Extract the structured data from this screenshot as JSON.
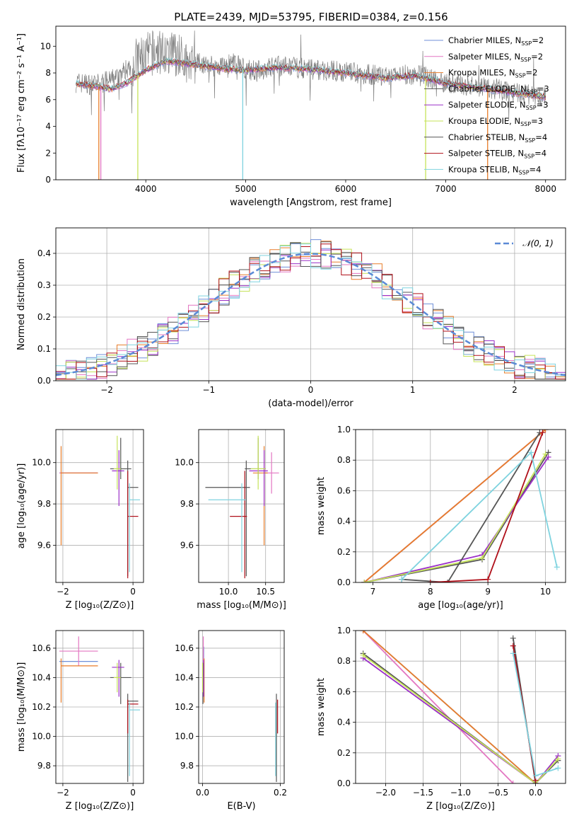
{
  "title": "PLATE=2439, MJD=53795, FIBERID=0384, z=0.156",
  "colors": [
    "#6f8fd8",
    "#e377c2",
    "#e87d2a",
    "#555555",
    "#9b30c8",
    "#c6e35a",
    "#555555",
    "#b0101a",
    "#7fd3df"
  ],
  "chart_data": [
    {
      "id": "spectrum",
      "type": "line",
      "xlabel": "wavelength [Angstrom, rest frame]",
      "ylabel": "Flux [fλ10⁻¹⁷ erg cm⁻² s⁻¹ A⁻¹]",
      "xlim": [
        3100,
        8200
      ],
      "ylim": [
        0,
        11.5
      ],
      "xticks": [
        4000,
        5000,
        6000,
        7000,
        8000
      ],
      "yticks": [
        0,
        2,
        4,
        6,
        8,
        10
      ],
      "grid": false,
      "legend_placement": "upper right",
      "data_continuum": [
        [
          3300,
          7.3
        ],
        [
          3500,
          7.1
        ],
        [
          3700,
          7.6
        ],
        [
          3900,
          8.9
        ],
        [
          4100,
          9.6
        ],
        [
          4300,
          9.3
        ],
        [
          4500,
          8.8
        ],
        [
          4700,
          8.5
        ],
        [
          4900,
          8.7
        ],
        [
          5100,
          8.1
        ],
        [
          5300,
          8.5
        ],
        [
          5500,
          8.4
        ],
        [
          5800,
          8.2
        ],
        [
          6100,
          8.0
        ],
        [
          6400,
          7.7
        ],
        [
          6700,
          7.9
        ],
        [
          7000,
          7.3
        ],
        [
          7300,
          7.0
        ],
        [
          7600,
          6.7
        ],
        [
          7900,
          6.3
        ],
        [
          8000,
          6.2
        ]
      ],
      "model_continuum": [
        [
          3300,
          7.2
        ],
        [
          3500,
          7.0
        ],
        [
          3650,
          6.8
        ],
        [
          3800,
          7.2
        ],
        [
          4000,
          8.2
        ],
        [
          4200,
          8.9
        ],
        [
          4500,
          8.6
        ],
        [
          4800,
          8.3
        ],
        [
          5000,
          8.2
        ],
        [
          5300,
          8.4
        ],
        [
          5600,
          8.3
        ],
        [
          6000,
          8.0
        ],
        [
          6400,
          7.6
        ],
        [
          6700,
          7.8
        ],
        [
          7000,
          7.2
        ],
        [
          7300,
          6.9
        ],
        [
          7600,
          6.6
        ],
        [
          8000,
          6.2
        ]
      ],
      "model_dropouts": [
        [
          3530,
          "#e87d2a"
        ],
        [
          3550,
          "#e377c2"
        ],
        [
          3920,
          "#c6e35a"
        ],
        [
          4970,
          "#7fd3df"
        ],
        [
          6800,
          "#c6e35a"
        ],
        [
          7420,
          "#e87d2a"
        ]
      ],
      "legend": [
        {
          "text": "Chabrier MILES, N",
          "sub": "SSP",
          "suffix": "=2",
          "color": "#6f8fd8"
        },
        {
          "text": "Salpeter MILES, N",
          "sub": "SSP",
          "suffix": "=2",
          "color": "#e377c2"
        },
        {
          "text": "Kroupa MILES, N",
          "sub": "SSP",
          "suffix": "=2",
          "color": "#e87d2a"
        },
        {
          "text": "Chabrier ELODIE, N",
          "sub": "SSP",
          "suffix": "=3",
          "color": "#555555"
        },
        {
          "text": "Salpeter ELODIE, N",
          "sub": "SSP",
          "suffix": "=3",
          "color": "#9b30c8"
        },
        {
          "text": "Kroupa ELODIE, N",
          "sub": "SSP",
          "suffix": "=3",
          "color": "#c6e35a"
        },
        {
          "text": "Chabrier STELIB, N",
          "sub": "SSP",
          "suffix": "=4",
          "color": "#555555"
        },
        {
          "text": "Salpeter STELIB, N",
          "sub": "SSP",
          "suffix": "=4",
          "color": "#b0101a"
        },
        {
          "text": "Kroupa STELIB, N",
          "sub": "SSP",
          "suffix": "=4",
          "color": "#7fd3df"
        }
      ]
    },
    {
      "id": "residual-histogram",
      "type": "line",
      "xlabel": "(data-model)/error",
      "ylabel": "Normed distribution",
      "xlim": [
        -2.5,
        2.5
      ],
      "ylim": [
        0,
        0.48
      ],
      "xticks": [
        -2,
        -1,
        0,
        1,
        2
      ],
      "xtick_labels": [
        "−2",
        "−1",
        "0",
        "1",
        "2"
      ],
      "yticks": [
        0.0,
        0.1,
        0.2,
        0.3,
        0.4
      ],
      "ytick_labels": [
        "0.0",
        "0.1",
        "0.2",
        "0.3",
        "0.4"
      ],
      "grid": true,
      "legend": "𝒩(0, 1)",
      "legend_placement": "upper right",
      "bins": 50,
      "reference_curve": "normal(0,1)"
    },
    {
      "id": "age-vs-Z",
      "type": "scatter",
      "xlabel": "Z [log₁₀(Z/Z⊙)]",
      "ylabel": "age  [log₁₀(age/yr)]",
      "xlim": [
        -2.2,
        0.3
      ],
      "ylim": [
        9.42,
        10.16
      ],
      "xticks": [
        -2,
        0
      ],
      "xtick_labels": [
        "−2",
        "0"
      ],
      "yticks": [
        9.6,
        9.8,
        10.0
      ],
      "ytick_labels": [
        "9.6",
        "9.8",
        "10.0"
      ],
      "grid": true,
      "points": [
        {
          "x": -1.55,
          "xerr": [
            0.55,
            0.55
          ],
          "y": 9.95,
          "yerr": [
            0,
            0
          ],
          "color": "#6f8fd8"
        },
        {
          "x": -1.55,
          "xerr": [
            0.55,
            0.55
          ],
          "y": 9.95,
          "yerr": [
            0,
            0
          ],
          "color": "#e377c2"
        },
        {
          "x": -2.05,
          "xerr": [
            0,
            1.05
          ],
          "y": 9.95,
          "yerr": [
            0.35,
            0.13
          ],
          "color": "#e87d2a"
        },
        {
          "x": -0.35,
          "xerr": [
            0.3,
            0.3
          ],
          "y": 9.97,
          "yerr": [
            0.05,
            0.15
          ],
          "color": "#555555"
        },
        {
          "x": -0.4,
          "xerr": [
            0.2,
            0.15
          ],
          "y": 9.96,
          "yerr": [
            0.17,
            0.1
          ],
          "color": "#9b30c8"
        },
        {
          "x": -0.45,
          "xerr": [
            0.1,
            0.1
          ],
          "y": 9.97,
          "yerr": [
            0.1,
            0.16
          ],
          "color": "#c6e35a"
        },
        {
          "x": -0.15,
          "xerr": [
            0,
            0.3
          ],
          "y": 9.88,
          "yerr": [
            0.43,
            0.13
          ],
          "color": "#555555"
        },
        {
          "x": -0.15,
          "xerr": [
            0,
            0.3
          ],
          "y": 9.74,
          "yerr": [
            0.3,
            0.22
          ],
          "color": "#b0101a"
        },
        {
          "x": -0.1,
          "xerr": [
            0,
            0.3
          ],
          "y": 9.82,
          "yerr": [
            0.35,
            0.08
          ],
          "color": "#7fd3df"
        }
      ]
    },
    {
      "id": "age-vs-mass",
      "type": "scatter",
      "xlabel": "mass [log₁₀(M/M⊙)]",
      "xlim": [
        9.6,
        10.75
      ],
      "ylim": [
        9.42,
        10.16
      ],
      "xticks": [
        10.0,
        10.5
      ],
      "xtick_labels": [
        "10.0",
        "10.5"
      ],
      "yticks": [
        9.6,
        9.8,
        10.0
      ],
      "ytick_labels": [
        "9.6",
        "9.8",
        "10.0"
      ],
      "grid": true,
      "points": [
        {
          "x": 10.5,
          "xerr": [
            0,
            0
          ],
          "y": 9.95,
          "yerr": [
            0,
            0
          ],
          "color": "#6f8fd8"
        },
        {
          "x": 10.58,
          "xerr": [
            0.1,
            0.1
          ],
          "y": 9.95,
          "yerr": [
            0.1,
            0.1
          ],
          "color": "#e377c2"
        },
        {
          "x": 10.48,
          "xerr": [
            0.15,
            0.05
          ],
          "y": 9.95,
          "yerr": [
            0.35,
            0.13
          ],
          "color": "#e87d2a"
        },
        {
          "x": 10.4,
          "xerr": [
            0.18,
            0.1
          ],
          "y": 9.97,
          "yerr": [
            0.05,
            0.15
          ],
          "color": "#555555"
        },
        {
          "x": 10.48,
          "xerr": [
            0.2,
            0.05
          ],
          "y": 9.96,
          "yerr": [
            0.17,
            0.1
          ],
          "color": "#9b30c8"
        },
        {
          "x": 10.4,
          "xerr": [
            0.1,
            0.1
          ],
          "y": 9.97,
          "yerr": [
            0.1,
            0.16
          ],
          "color": "#c6e35a"
        },
        {
          "x": 10.24,
          "xerr": [
            0.55,
            0.05
          ],
          "y": 9.88,
          "yerr": [
            0.43,
            0.13
          ],
          "color": "#555555"
        },
        {
          "x": 10.22,
          "xerr": [
            0.2,
            0.03
          ],
          "y": 9.74,
          "yerr": [
            0.3,
            0.22
          ],
          "color": "#b0101a"
        },
        {
          "x": 10.18,
          "xerr": [
            0.45,
            0.05
          ],
          "y": 9.82,
          "yerr": [
            0.35,
            0.08
          ],
          "color": "#7fd3df"
        }
      ]
    },
    {
      "id": "mass-weight-vs-age",
      "type": "line",
      "xlabel": "age  [log₁₀(age/yr)]",
      "ylabel": "mass weight",
      "xlim": [
        6.7,
        10.35
      ],
      "ylim": [
        0,
        1.0
      ],
      "xticks": [
        7,
        8,
        9,
        10
      ],
      "xtick_labels": [
        "7",
        "8",
        "9",
        "10"
      ],
      "yticks": [
        0.0,
        0.2,
        0.4,
        0.6,
        0.8,
        1.0
      ],
      "ytick_labels": [
        "0.0",
        "0.2",
        "0.4",
        "0.6",
        "0.8",
        "1.0"
      ],
      "grid": true,
      "series": [
        {
          "color": "#6f8fd8",
          "x": [
            6.85,
            10.0
          ],
          "y": [
            0.0,
            1.0
          ]
        },
        {
          "color": "#e377c2",
          "x": [
            6.85,
            10.0
          ],
          "y": [
            0.0,
            1.0
          ]
        },
        {
          "color": "#e87d2a",
          "x": [
            6.85,
            10.0
          ],
          "y": [
            0.0,
            1.0
          ]
        },
        {
          "color": "#555555",
          "x": [
            6.85,
            8.9,
            10.05
          ],
          "y": [
            0.0,
            0.15,
            0.85
          ]
        },
        {
          "color": "#9b30c8",
          "x": [
            6.85,
            8.9,
            10.05
          ],
          "y": [
            0.0,
            0.18,
            0.82
          ]
        },
        {
          "color": "#c6e35a",
          "x": [
            6.85,
            8.9,
            10.0
          ],
          "y": [
            0.0,
            0.16,
            0.84
          ]
        },
        {
          "color": "#555555",
          "x": [
            7.5,
            8.3,
            9.9
          ],
          "y": [
            0.02,
            0.0,
            0.98
          ]
        },
        {
          "color": "#b0101a",
          "x": [
            8.0,
            9.0,
            9.95
          ],
          "y": [
            0.0,
            0.02,
            0.98
          ]
        },
        {
          "color": "#7fd3df",
          "x": [
            7.5,
            9.75,
            10.2
          ],
          "y": [
            0.02,
            0.85,
            0.1
          ]
        }
      ]
    },
    {
      "id": "mass-vs-Z",
      "type": "scatter",
      "xlabel": "Z [log₁₀(Z/Z⊙)]",
      "ylabel": "mass [log₁₀(M/M⊙)]",
      "xlim": [
        -2.2,
        0.3
      ],
      "ylim": [
        9.68,
        10.72
      ],
      "xticks": [
        -2,
        0
      ],
      "xtick_labels": [
        "−2",
        "0"
      ],
      "yticks": [
        9.8,
        10.0,
        10.2,
        10.4,
        10.6
      ],
      "ytick_labels": [
        "9.8",
        "10.0",
        "10.2",
        "10.4",
        "10.6"
      ],
      "grid": true,
      "points": [
        {
          "x": -1.55,
          "xerr": [
            0.55,
            0.55
          ],
          "y": 10.51,
          "yerr": [
            0,
            0
          ],
          "color": "#6f8fd8"
        },
        {
          "x": -1.55,
          "xerr": [
            0.55,
            0.55
          ],
          "y": 10.58,
          "yerr": [
            0.1,
            0.1
          ],
          "color": "#e377c2"
        },
        {
          "x": -2.05,
          "xerr": [
            0,
            1.05
          ],
          "y": 10.48,
          "yerr": [
            0.25,
            0.05
          ],
          "color": "#e87d2a"
        },
        {
          "x": -0.35,
          "xerr": [
            0.3,
            0.3
          ],
          "y": 10.4,
          "yerr": [
            0.18,
            0.1
          ],
          "color": "#555555"
        },
        {
          "x": -0.4,
          "xerr": [
            0.2,
            0.15
          ],
          "y": 10.47,
          "yerr": [
            0.2,
            0.05
          ],
          "color": "#9b30c8"
        },
        {
          "x": -0.45,
          "xerr": [
            0.1,
            0.1
          ],
          "y": 10.4,
          "yerr": [
            0.1,
            0.1
          ],
          "color": "#c6e35a"
        },
        {
          "x": -0.15,
          "xerr": [
            0,
            0.3
          ],
          "y": 10.24,
          "yerr": [
            0.55,
            0.05
          ],
          "color": "#555555"
        },
        {
          "x": -0.15,
          "xerr": [
            0,
            0.3
          ],
          "y": 10.22,
          "yerr": [
            0.2,
            0.03
          ],
          "color": "#b0101a"
        },
        {
          "x": -0.1,
          "xerr": [
            0,
            0.3
          ],
          "y": 10.18,
          "yerr": [
            0.45,
            0.05
          ],
          "color": "#7fd3df"
        }
      ]
    },
    {
      "id": "mass-vs-EBV",
      "type": "scatter",
      "xlabel": "E(B-V)",
      "xlim": [
        -0.01,
        0.21
      ],
      "ylim": [
        9.68,
        10.72
      ],
      "xticks": [
        0.0,
        0.2
      ],
      "xtick_labels": [
        "0.0",
        "0.2"
      ],
      "yticks": [
        9.8,
        10.0,
        10.2,
        10.4,
        10.6
      ],
      "ytick_labels": [
        "9.8",
        "10.0",
        "10.2",
        "10.4",
        "10.6"
      ],
      "grid": true,
      "points": [
        {
          "x": 0.003,
          "y": 10.51,
          "yerr": [
            0.1,
            0.1
          ],
          "color": "#6f8fd8"
        },
        {
          "x": 0.002,
          "y": 10.58,
          "yerr": [
            0.1,
            0.1
          ],
          "color": "#e377c2"
        },
        {
          "x": 0.004,
          "y": 10.48,
          "yerr": [
            0.25,
            0.05
          ],
          "color": "#e87d2a"
        },
        {
          "x": 0.001,
          "y": 10.4,
          "yerr": [
            0.18,
            0.1
          ],
          "color": "#555555"
        },
        {
          "x": 0.003,
          "y": 10.47,
          "yerr": [
            0.2,
            0.05
          ],
          "color": "#9b30c8"
        },
        {
          "x": 0.0,
          "y": 10.4,
          "yerr": [
            0.1,
            0.1
          ],
          "color": "#c6e35a"
        },
        {
          "x": 0.19,
          "y": 10.24,
          "yerr": [
            0.55,
            0.05
          ],
          "color": "#555555"
        },
        {
          "x": 0.193,
          "y": 10.22,
          "yerr": [
            0.2,
            0.03
          ],
          "color": "#b0101a"
        },
        {
          "x": 0.188,
          "y": 10.18,
          "yerr": [
            0.45,
            0.05
          ],
          "color": "#7fd3df"
        }
      ]
    },
    {
      "id": "mass-weight-vs-Z",
      "type": "line",
      "xlabel": "Z [log₁₀(Z/Z⊙)]",
      "ylabel": "mass weight",
      "xlim": [
        -2.4,
        0.4
      ],
      "ylim": [
        0,
        1.0
      ],
      "xticks": [
        -2.0,
        -1.5,
        -1.0,
        -0.5,
        0.0
      ],
      "xtick_labels": [
        "−2.0",
        "−1.5",
        "−1.0",
        "−0.5",
        "0.0"
      ],
      "yticks": [
        0.0,
        0.2,
        0.4,
        0.6,
        0.8,
        1.0
      ],
      "ytick_labels": [
        "0.0",
        "0.2",
        "0.4",
        "0.6",
        "0.8",
        "1.0"
      ],
      "grid": true,
      "series": [
        {
          "color": "#6f8fd8",
          "x": [
            -2.3,
            0.0
          ],
          "y": [
            1.0,
            0.0
          ]
        },
        {
          "color": "#e377c2",
          "x": [
            -2.3,
            -0.3
          ],
          "y": [
            1.0,
            0.0
          ]
        },
        {
          "color": "#e87d2a",
          "x": [
            -2.3,
            0.0
          ],
          "y": [
            1.0,
            0.0
          ]
        },
        {
          "color": "#555555",
          "x": [
            -2.3,
            0.0,
            0.3
          ],
          "y": [
            0.85,
            0.0,
            0.15
          ]
        },
        {
          "color": "#9b30c8",
          "x": [
            -2.3,
            0.0,
            0.3
          ],
          "y": [
            0.82,
            0.0,
            0.18
          ]
        },
        {
          "color": "#c6e35a",
          "x": [
            -2.3,
            0.0,
            0.3
          ],
          "y": [
            0.84,
            0.0,
            0.16
          ]
        },
        {
          "color": "#555555",
          "x": [
            -0.3,
            0.0
          ],
          "y": [
            0.95,
            0.0
          ]
        },
        {
          "color": "#b0101a",
          "x": [
            -0.3,
            0.0
          ],
          "y": [
            0.9,
            0.02
          ]
        },
        {
          "color": "#7fd3df",
          "x": [
            -0.3,
            0.0,
            0.3
          ],
          "y": [
            0.85,
            0.05,
            0.1
          ]
        }
      ]
    }
  ]
}
